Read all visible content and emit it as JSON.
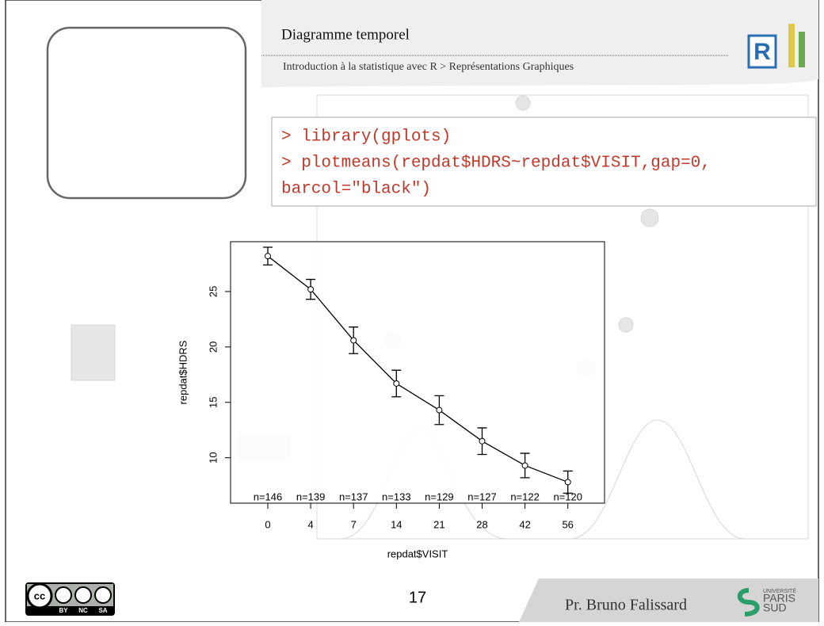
{
  "slide": {
    "title": "Diagramme temporel",
    "breadcrumb": "Introduction à la statistique avec R > Représentations Graphiques",
    "code": [
      "> library(gplots)",
      "> plotmeans(repdat$HDRS~repdat$VISIT,gap=0,",
      "  barcol=\"black\")"
    ],
    "page_number": "17",
    "author": "Pr. Bruno Falissard",
    "license": [
      "BY",
      "NC",
      "SA"
    ],
    "university": [
      "UNIVERSITÉ",
      "PARIS",
      "SUD"
    ]
  },
  "chart_data": {
    "type": "line",
    "x_label": "repdat$VISIT",
    "y_label": "repdat$HDRS",
    "categories": [
      "0",
      "4",
      "7",
      "14",
      "21",
      "28",
      "42",
      "56"
    ],
    "values": [
      28.2,
      25.2,
      20.6,
      16.7,
      14.3,
      11.5,
      9.3,
      7.8
    ],
    "errors": [
      0.8,
      0.9,
      1.2,
      1.2,
      1.3,
      1.2,
      1.1,
      1.0
    ],
    "n_labels": [
      "n=146",
      "n=139",
      "n=137",
      "n=133",
      "n=129",
      "n=127",
      "n=122",
      "n=120"
    ],
    "color": "#000000",
    "ylim": [
      5.9,
      29.5
    ],
    "yticks": [
      10,
      15,
      20,
      25
    ]
  }
}
